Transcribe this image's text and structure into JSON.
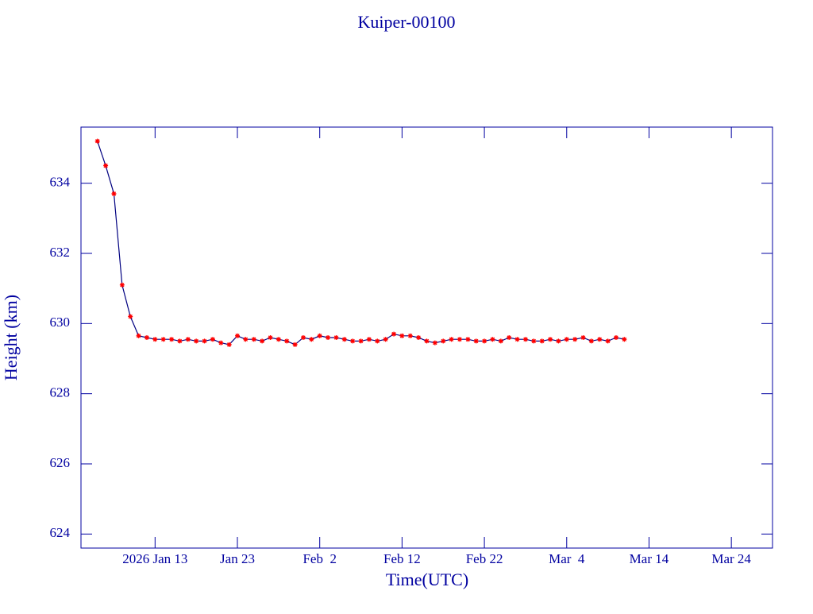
{
  "chart_data": {
    "type": "line",
    "title": "Kuiper-00100",
    "x_label": "Time(UTC)",
    "y_label": "Height (km)",
    "x": [
      "2026-01-06",
      "2026-01-07",
      "2026-01-08",
      "2026-01-09",
      "2026-01-10",
      "2026-01-11",
      "2026-01-12",
      "2026-01-13",
      "2026-01-14",
      "2026-01-15",
      "2026-01-16",
      "2026-01-17",
      "2026-01-18",
      "2026-01-19",
      "2026-01-20",
      "2026-01-21",
      "2026-01-22",
      "2026-01-23",
      "2026-01-24",
      "2026-01-25",
      "2026-01-26",
      "2026-01-27",
      "2026-01-28",
      "2026-01-29",
      "2026-01-30",
      "2026-01-31",
      "2026-02-01",
      "2026-02-02",
      "2026-02-03",
      "2026-02-04",
      "2026-02-05",
      "2026-02-06",
      "2026-02-07",
      "2026-02-08",
      "2026-02-09",
      "2026-02-10",
      "2026-02-11",
      "2026-02-12",
      "2026-02-13",
      "2026-02-14",
      "2026-02-15",
      "2026-02-16",
      "2026-02-17",
      "2026-02-18",
      "2026-02-19",
      "2026-02-20",
      "2026-02-21",
      "2026-02-22",
      "2026-02-23",
      "2026-02-24",
      "2026-02-25",
      "2026-02-26",
      "2026-02-27",
      "2026-02-28",
      "2026-03-01",
      "2026-03-02",
      "2026-03-03",
      "2026-03-04",
      "2026-03-05",
      "2026-03-06",
      "2026-03-07",
      "2026-03-08",
      "2026-03-09",
      "2026-03-10",
      "2026-03-11"
    ],
    "series": [
      {
        "color": "#000080",
        "marker_color": "#ff0000",
        "values": [
          635.2,
          634.5,
          633.7,
          631.1,
          630.2,
          629.65,
          629.6,
          629.55,
          629.55,
          629.55,
          629.5,
          629.55,
          629.5,
          629.5,
          629.55,
          629.45,
          629.4,
          629.65,
          629.55,
          629.55,
          629.5,
          629.6,
          629.55,
          629.5,
          629.4,
          629.6,
          629.55,
          629.65,
          629.6,
          629.6,
          629.55,
          629.5,
          629.5,
          629.55,
          629.5,
          629.55,
          629.7,
          629.65,
          629.65,
          629.6,
          629.5,
          629.45,
          629.5,
          629.55,
          629.55,
          629.55,
          629.5,
          629.5,
          629.55,
          629.5,
          629.6,
          629.55,
          629.55,
          629.5,
          629.5,
          629.55,
          629.5,
          629.55,
          629.55,
          629.6,
          629.5,
          629.55,
          629.5,
          629.6,
          629.55
        ]
      }
    ],
    "xlim": [
      "2026-01-04",
      "2026-03-29"
    ],
    "xticks": [
      {
        "value": "2026-01-13",
        "label": "2026 Jan 13"
      },
      {
        "value": "2026-01-23",
        "label": "Jan 23"
      },
      {
        "value": "2026-02-02",
        "label": "Feb  2"
      },
      {
        "value": "2026-02-12",
        "label": "Feb 12"
      },
      {
        "value": "2026-02-22",
        "label": "Feb 22"
      },
      {
        "value": "2026-03-04",
        "label": "Mar  4"
      },
      {
        "value": "2026-03-14",
        "label": "Mar 14"
      },
      {
        "value": "2026-03-24",
        "label": "Mar 24"
      }
    ],
    "ylim": [
      623.6,
      635.6
    ],
    "yticks": [
      624,
      626,
      628,
      630,
      632,
      634
    ]
  }
}
